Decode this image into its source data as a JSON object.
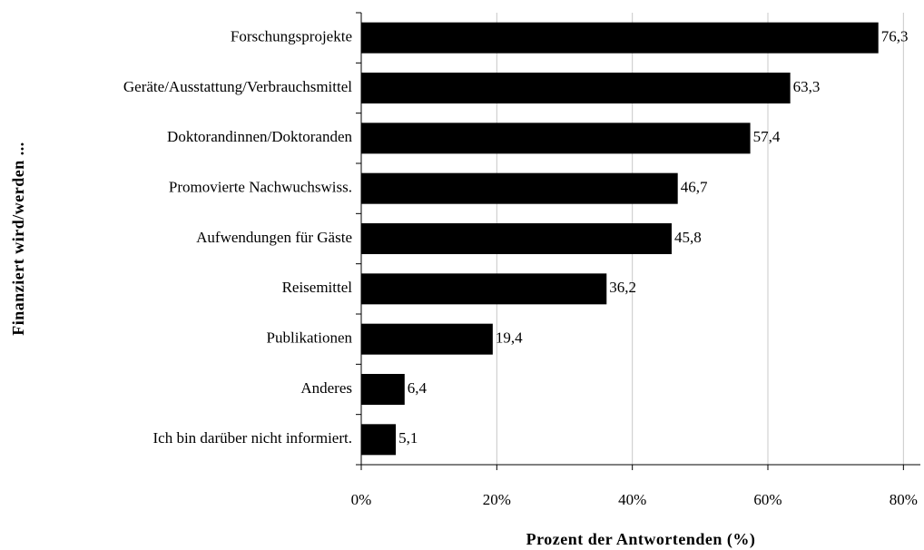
{
  "chart_data": {
    "type": "bar",
    "orientation": "horizontal",
    "xlabel": "Prozent der Antwortenden (%)",
    "ylabel": "Finanziert wird/werden ...",
    "categories": [
      "Forschungsprojekte",
      "Geräte/Ausstattung/Verbrauchsmittel",
      "Doktorandinnen/Doktoranden",
      "Promovierte Nachwuchswiss.",
      "Aufwendungen für Gäste",
      "Reisemittel",
      "Publikationen",
      "Anderes",
      "Ich bin darüber nicht informiert."
    ],
    "values": [
      76.3,
      63.3,
      57.4,
      46.7,
      45.8,
      36.2,
      19.4,
      6.4,
      5.1
    ],
    "value_labels": [
      "76,3",
      "63,3",
      "57,4",
      "46,7",
      "45,8",
      "36,2",
      "19,4",
      "6,4",
      "5,1"
    ],
    "color": "#000000",
    "xlim": [
      0,
      82.5
    ],
    "xticks": [
      {
        "value": 0,
        "label": "0%"
      },
      {
        "value": 20,
        "label": "20%"
      },
      {
        "value": 40,
        "label": "40%"
      },
      {
        "value": 60,
        "label": "60%"
      },
      {
        "value": 80,
        "label": "80%"
      }
    ],
    "grid": true
  }
}
